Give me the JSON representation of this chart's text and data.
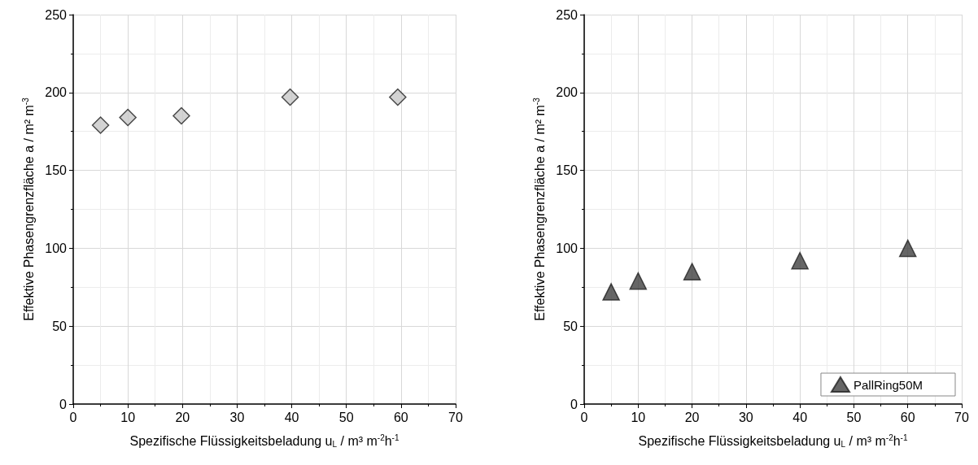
{
  "chart_data": [
    {
      "type": "scatter",
      "xlabel": "Spezifische Flüssigkeitsbeladung u$_{L}$ / m³ m$^{-2}$h$^{-1}$",
      "ylabel": "Effektive Phasengrenzfläche a / m² m$^{-3}$",
      "xlim": [
        0,
        70
      ],
      "xticks": [
        0,
        10,
        20,
        30,
        40,
        50,
        60,
        70
      ],
      "ylim": [
        0,
        250
      ],
      "yticks": [
        0,
        50,
        100,
        150,
        200,
        250
      ],
      "grid": true,
      "legend": false,
      "marker": "diamond",
      "series": [
        {
          "color": "#c8c8c8",
          "x": [
            5,
            10,
            19.8,
            39.7,
            59.4
          ],
          "values": [
            179,
            184,
            185,
            197,
            197
          ]
        }
      ]
    },
    {
      "type": "scatter",
      "xlabel": "Spezifische Flüssigkeitsbeladung u$_{L}$ / m³ m$^{-2}$h$^{-1}$",
      "ylabel": "Effektive Phasengrenzfläche a / m² m$^{-3}$",
      "xlim": [
        0,
        70
      ],
      "xticks": [
        0,
        10,
        20,
        30,
        40,
        50,
        60,
        70
      ],
      "ylim": [
        0,
        250
      ],
      "yticks": [
        0,
        50,
        100,
        150,
        200,
        250
      ],
      "grid": true,
      "legend": "bottom right",
      "marker": "triangle",
      "series": [
        {
          "name": "PallRing50M",
          "color": "#404040",
          "x": [
            5,
            10,
            20,
            40,
            60
          ],
          "values": [
            72,
            79,
            85,
            92,
            100
          ]
        }
      ]
    }
  ]
}
